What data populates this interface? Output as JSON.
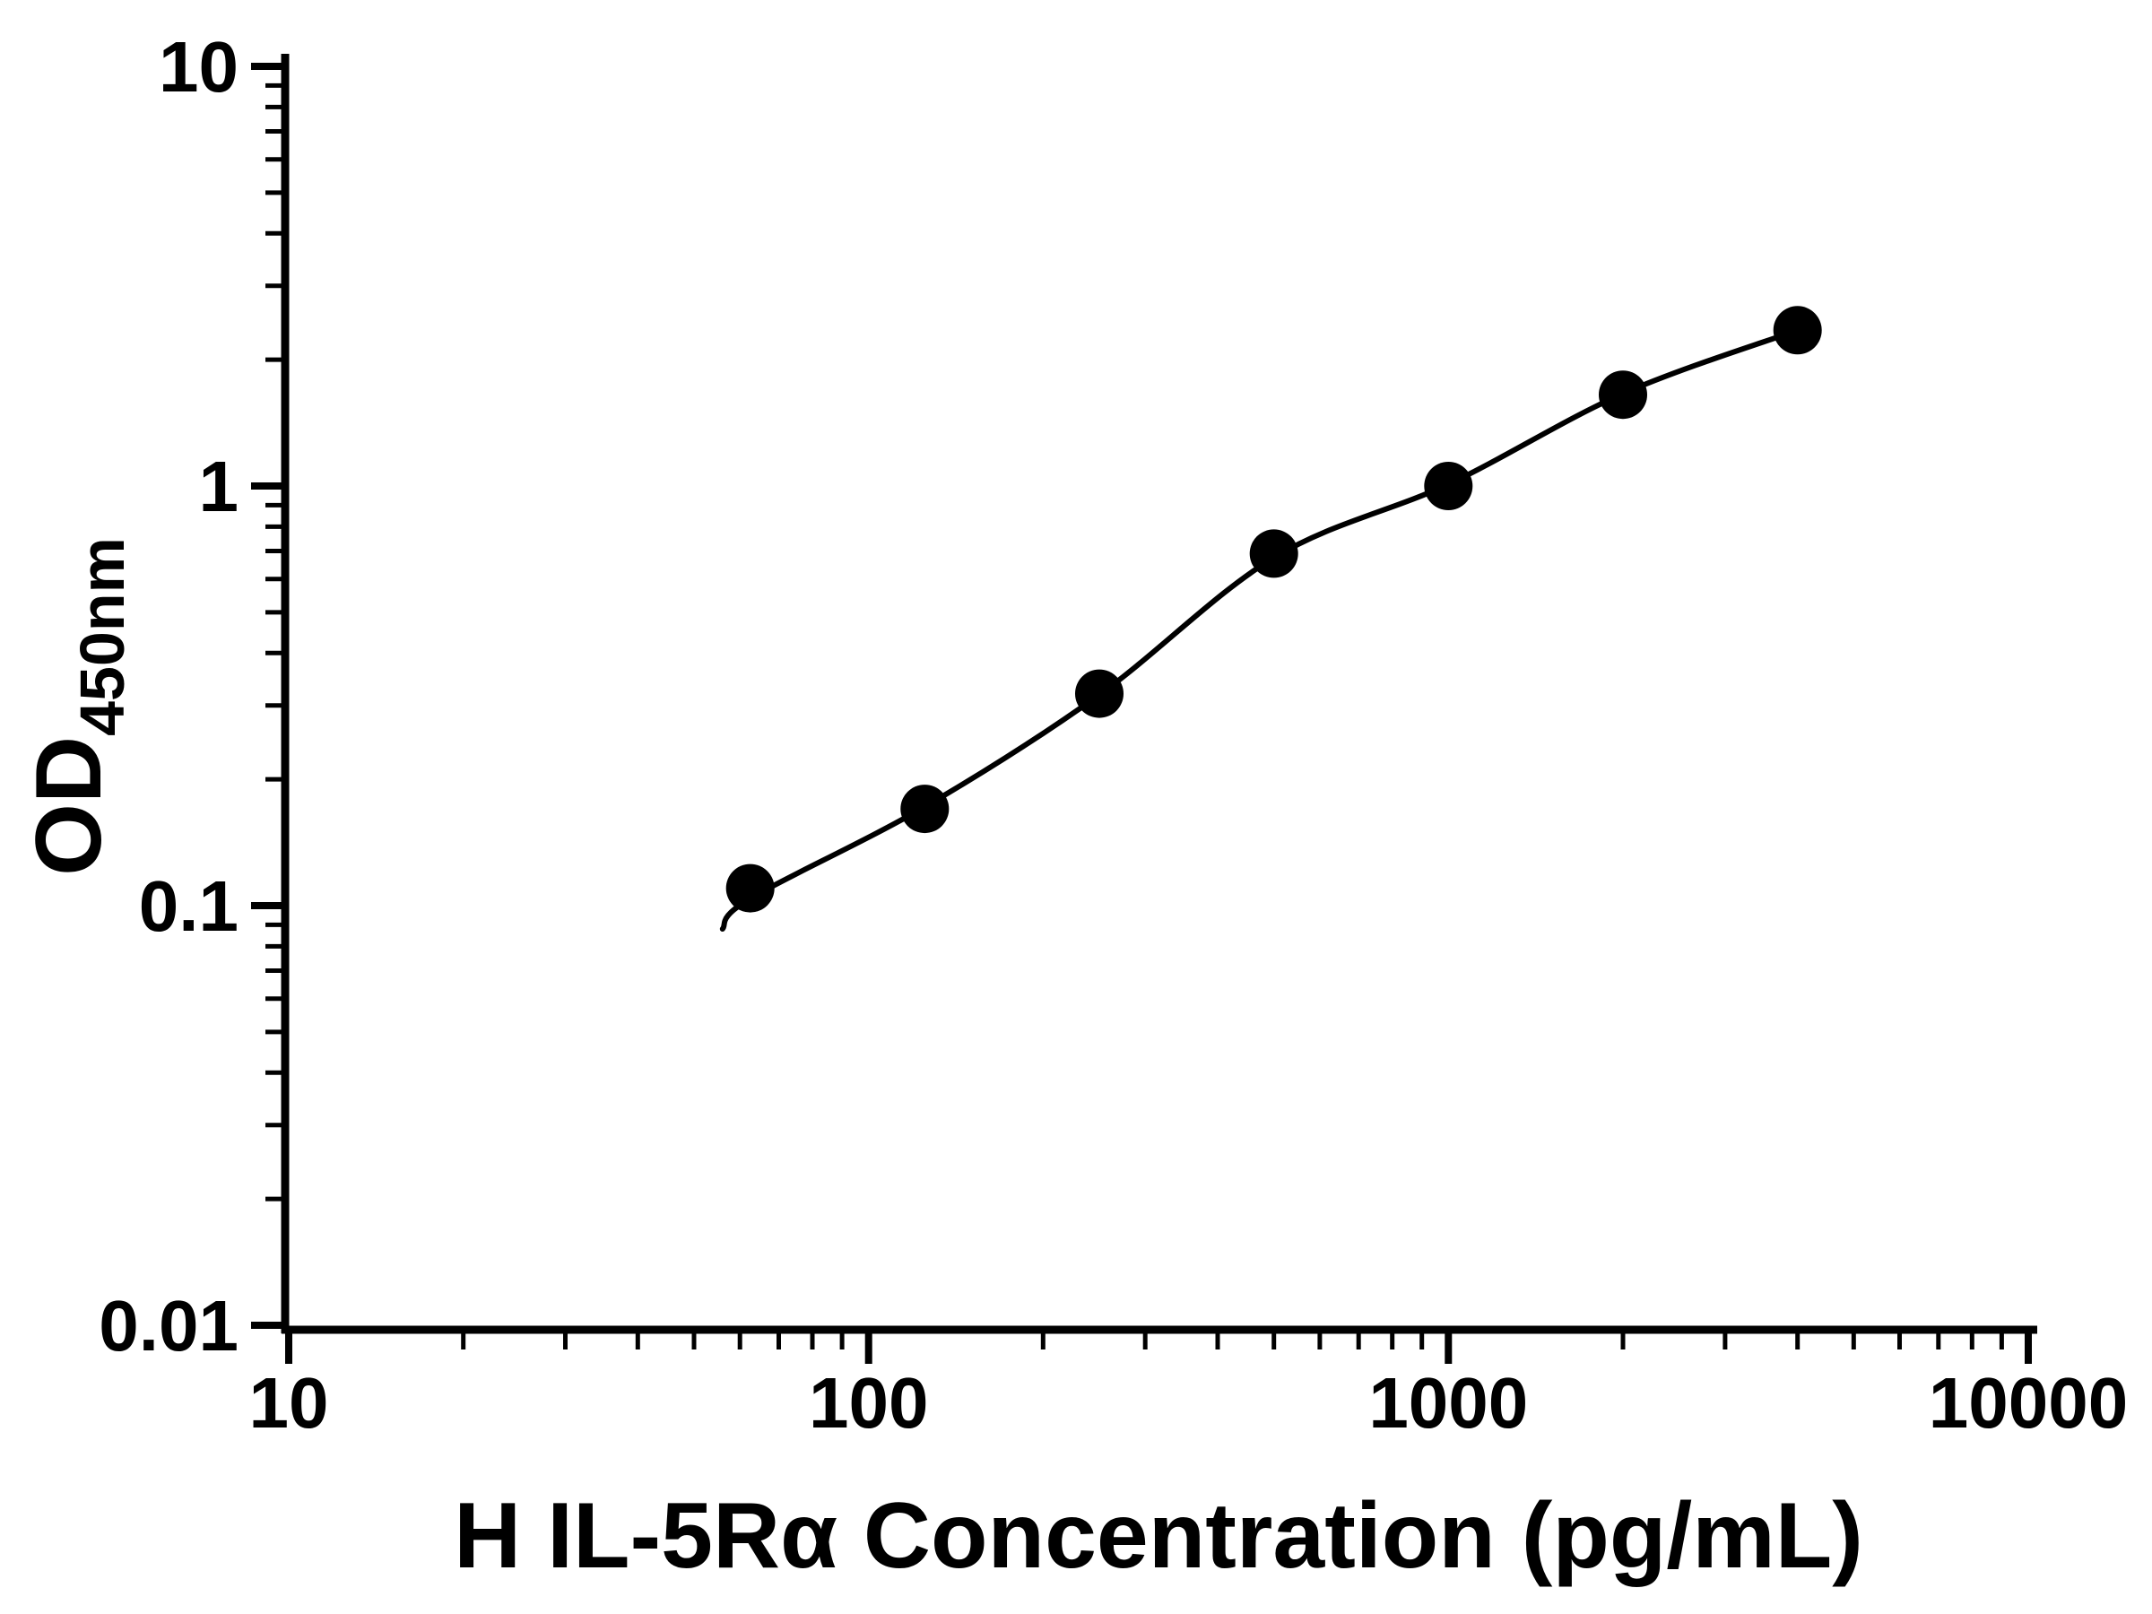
{
  "figure": {
    "background": "#ffffff"
  },
  "chart_data": {
    "type": "scatter",
    "title": "",
    "xlabel": "H IL-5Rα Concentration (pg/mL)",
    "ylabel_main": "OD",
    "ylabel_sub": "450nm",
    "x_scale": "log",
    "y_scale": "log",
    "xlim": [
      10,
      10000
    ],
    "ylim": [
      0.01,
      10
    ],
    "grid": false,
    "legend": false,
    "x_ticks": [
      {
        "value": 10,
        "label": "10"
      },
      {
        "value": 100,
        "label": "100"
      },
      {
        "value": 1000,
        "label": "1000"
      },
      {
        "value": 10000,
        "label": "10000"
      }
    ],
    "y_ticks": [
      {
        "value": 0.01,
        "label": "0.01"
      },
      {
        "value": 0.1,
        "label": "0.1"
      },
      {
        "value": 1,
        "label": "1"
      },
      {
        "value": 10,
        "label": "10"
      }
    ],
    "points": [
      {
        "x": 62.5,
        "y": 0.11
      },
      {
        "x": 125,
        "y": 0.17
      },
      {
        "x": 250,
        "y": 0.32
      },
      {
        "x": 500,
        "y": 0.69
      },
      {
        "x": 1000,
        "y": 1.0
      },
      {
        "x": 2000,
        "y": 1.65
      },
      {
        "x": 4000,
        "y": 2.35
      }
    ],
    "fit_curve": [
      {
        "x": 56,
        "y": 0.088
      },
      {
        "x": 62.5,
        "y": 0.104
      },
      {
        "x": 125,
        "y": 0.172
      },
      {
        "x": 250,
        "y": 0.318
      },
      {
        "x": 500,
        "y": 0.675
      },
      {
        "x": 1000,
        "y": 1.01
      },
      {
        "x": 2000,
        "y": 1.66
      },
      {
        "x": 4000,
        "y": 2.35
      }
    ],
    "marker_color": "#000000",
    "line_color": "#000000",
    "axis_color": "#000000"
  }
}
